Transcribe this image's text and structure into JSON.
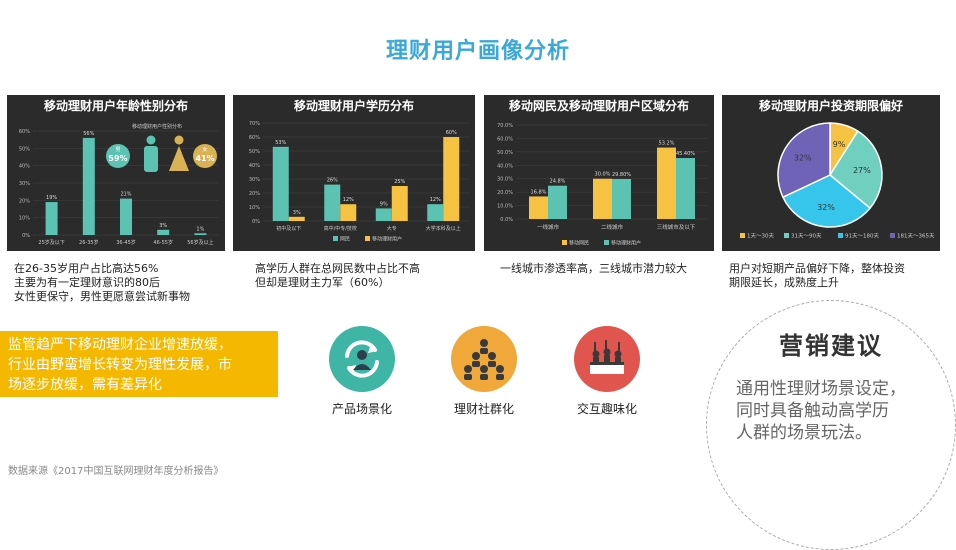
{
  "page_title": "理财用户画像分析",
  "colors": {
    "teal": "#5cc2b2",
    "yellow": "#f5c242",
    "panel_bg": "#2b2b2b",
    "accent_title": "#3aa8d8",
    "callout": "#f5b800"
  },
  "chart_data": [
    {
      "type": "bar",
      "title": "移动理财用户年龄性别分布",
      "categories": [
        "25岁及以下",
        "26-35岁",
        "36-45岁",
        "46-55岁",
        "56岁及以上"
      ],
      "values": [
        19,
        56,
        21,
        3,
        1
      ],
      "value_labels": [
        "19%",
        "56%",
        "21%",
        "3%",
        "1%"
      ],
      "ylim": [
        0,
        60
      ],
      "yticks": [
        "0%",
        "10%",
        "20%",
        "30%",
        "40%",
        "50%",
        "60%"
      ],
      "inset_title": "移动理财用户性别分布",
      "gender": {
        "male_label": "男",
        "male_value": "59%",
        "female_label": "女",
        "female_value": "41%"
      }
    },
    {
      "type": "bar",
      "title": "移动理财用户学历分布",
      "categories": [
        "初中及以下",
        "高中/中专/技校",
        "大专",
        "大学本科及以上"
      ],
      "series": [
        {
          "name": "网民",
          "values": [
            53,
            26,
            9,
            12
          ],
          "labels": [
            "53%",
            "26%",
            "9%",
            "12%"
          ]
        },
        {
          "name": "移动理财用户",
          "values": [
            3,
            12,
            25,
            60
          ],
          "labels": [
            "3%",
            "12%",
            "25%",
            "60%"
          ]
        }
      ],
      "ylim": [
        0,
        70
      ],
      "yticks": [
        "0%",
        "10%",
        "20%",
        "30%",
        "40%",
        "50%",
        "60%",
        "70%"
      ]
    },
    {
      "type": "bar",
      "title": "移动网民及移动理财用户区域分布",
      "categories": [
        "一线城市",
        "二线城市",
        "三线城市及以下"
      ],
      "series": [
        {
          "name": "移动网民",
          "values": [
            16.8,
            30.0,
            53.2
          ],
          "labels": [
            "16.8%",
            "30.0%",
            "53.2%"
          ]
        },
        {
          "name": "移动理财用户",
          "values": [
            24.8,
            29.8,
            45.4
          ],
          "labels": [
            "24.8%",
            "29.80%",
            "45.40%"
          ]
        }
      ],
      "ylim": [
        0,
        70
      ],
      "yticks": [
        "0.0%",
        "10.0%",
        "20.0%",
        "30.0%",
        "40.0%",
        "50.0%",
        "60.0%",
        "70.0%"
      ]
    },
    {
      "type": "pie",
      "title": "移动理财用户投资期限偏好",
      "slices": [
        {
          "name": "1天～30天",
          "value": 9,
          "label": "9%",
          "color": "#f5c242"
        },
        {
          "name": "31天～90天",
          "value": 27,
          "label": "27%",
          "color": "#6fd0c0"
        },
        {
          "name": "91天～180天",
          "value": 32,
          "label": "32%",
          "color": "#36c6ec"
        },
        {
          "name": "181天～365天",
          "value": 32,
          "label": "32%",
          "color": "#6f63b8"
        }
      ]
    }
  ],
  "descriptions": [
    [
      "在26-35岁用户占比高达56%",
      "主要为有一定理财意识的80后",
      "女性更保守，男性更愿意尝试新事物"
    ],
    [
      "高学历人群在总网民数中占比不高",
      "但却是理财主力军（60%）"
    ],
    [
      "一线城市渗透率高，三线城市潜力较大"
    ],
    [
      "用户对短期产品偏好下降，整体投资",
      "期限延长，成熟度上升"
    ]
  ],
  "callout_lines": [
    "监管趋严下移动理财企业增速放缓，",
    "行业由野蛮增长转变为理性发展，市",
    "场逐步放缓，需有差异化"
  ],
  "icons": [
    {
      "label": "产品场景化",
      "color": "#3fb5a5"
    },
    {
      "label": "理财社群化",
      "color": "#f0a83a"
    },
    {
      "label": "交互趣味化",
      "color": "#e0564f"
    }
  ],
  "advice": {
    "title": "营销建议",
    "lines": [
      "通用性理财场景设定，",
      "同时具备触动高学历",
      "人群的场景玩法。"
    ]
  },
  "source": "数据来源《2017中国互联网理财年度分析报告》"
}
